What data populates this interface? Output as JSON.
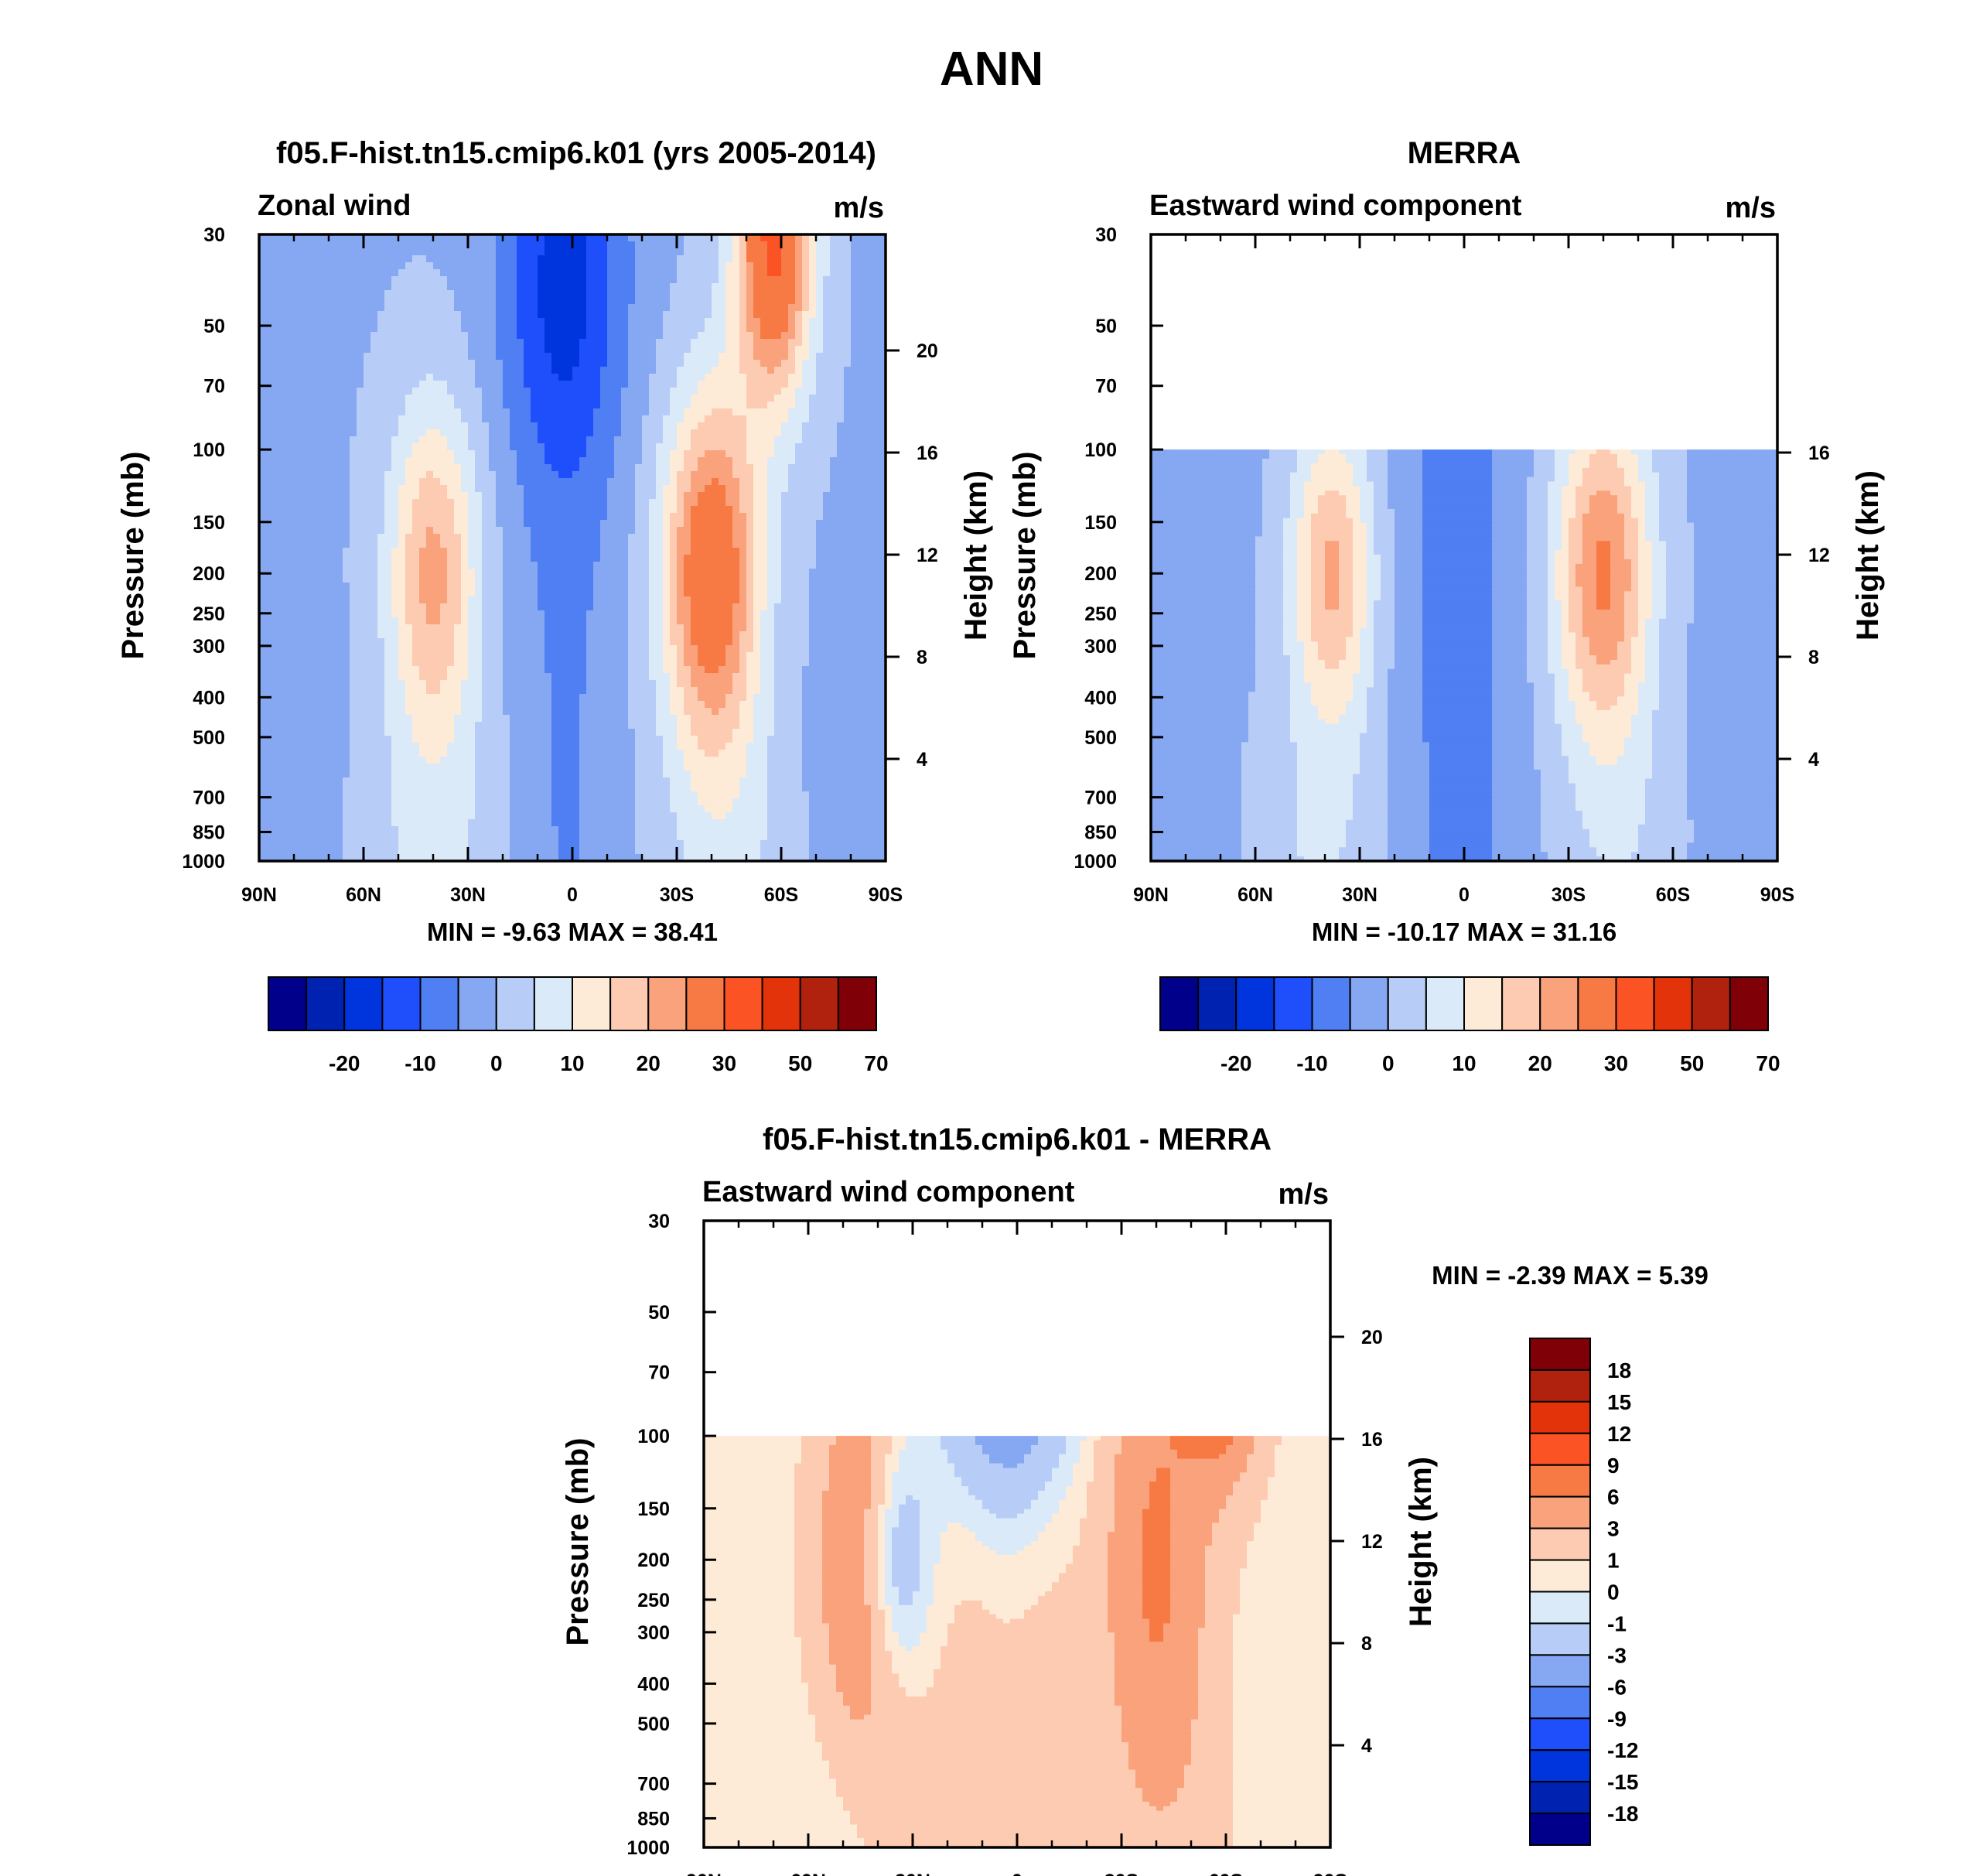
{
  "figure": {
    "title": "ANN"
  },
  "palettes": {
    "main": [
      "#00008a",
      "#0022b0",
      "#0035dd",
      "#1f4ffb",
      "#4f7ff2",
      "#86a7f2",
      "#b7cdf7",
      "#daeaf9",
      "#fdebd7",
      "#fdcbb1",
      "#f9a27b",
      "#f77a45",
      "#fb5323",
      "#e2330b",
      "#b0220d",
      "#7f0006"
    ],
    "diff": [
      "#00008a",
      "#0022b0",
      "#0035dd",
      "#1f4ffb",
      "#4f7ff2",
      "#86a7f2",
      "#b7cdf7",
      "#daeaf9",
      "#fdebd7",
      "#fdcbb1",
      "#f9a27b",
      "#f77a45",
      "#fb5323",
      "#e2330b",
      "#b0220d",
      "#7f0006"
    ]
  },
  "chart_data": [
    {
      "type": "heatmap",
      "id": "model",
      "title": "f05.F-hist.tn15.cmip6.k01 (yrs 2005-2014)",
      "left_string": "Zonal wind",
      "units": "m/s",
      "ylabel": "Pressure (mb)",
      "ylabel_right": "Height (km)",
      "x_ticks": [
        "90N",
        "60N",
        "30N",
        "0",
        "30S",
        "60S",
        "90S"
      ],
      "y_ticks": [
        "30",
        "50",
        "70",
        "100",
        "150",
        "200",
        "250",
        "300",
        "400",
        "500",
        "700",
        "850",
        "1000"
      ],
      "height_ticks": [
        "20",
        "16",
        "12",
        "8",
        "4"
      ],
      "xlim": [
        -90,
        90
      ],
      "ylim": [
        1000,
        30
      ],
      "data_top_mb": 30,
      "min_label": "MIN =  -9.63  MAX =  38.41",
      "levels": [
        -25,
        -20,
        -15,
        -10,
        -5,
        0,
        5,
        10,
        15,
        20,
        25,
        30,
        40,
        50,
        60,
        70,
        80
      ],
      "colorbar_labels": [
        "-20",
        "-10",
        "0",
        "10",
        "20",
        "30",
        "50",
        "70"
      ],
      "colorbar_values": [
        -20,
        -10,
        0,
        10,
        20,
        30,
        50,
        70
      ],
      "jets": {
        "nh_peak": 22,
        "nh_lat": 40,
        "sh_peak": 33,
        "sh_lat": 40,
        "polar_night_jet": 38
      }
    },
    {
      "type": "heatmap",
      "id": "obs",
      "title": "MERRA",
      "left_string": "Eastward wind component",
      "units": "m/s",
      "ylabel": "Pressure (mb)",
      "ylabel_right": "Height (km)",
      "x_ticks": [
        "90N",
        "60N",
        "30N",
        "0",
        "30S",
        "60S",
        "90S"
      ],
      "y_ticks": [
        "30",
        "50",
        "70",
        "100",
        "150",
        "200",
        "250",
        "300",
        "400",
        "500",
        "700",
        "850",
        "1000"
      ],
      "height_ticks": [
        "16",
        "12",
        "8",
        "4"
      ],
      "xlim": [
        -90,
        90
      ],
      "ylim": [
        1000,
        30
      ],
      "data_top_mb": 100,
      "min_label": "MIN = -10.17  MAX =  31.16",
      "levels": [
        -25,
        -20,
        -15,
        -10,
        -5,
        0,
        5,
        10,
        15,
        20,
        25,
        30,
        40,
        50,
        60,
        70,
        80
      ],
      "colorbar_labels": [
        "-20",
        "-10",
        "0",
        "10",
        "20",
        "30",
        "50",
        "70"
      ],
      "colorbar_values": [
        -20,
        -10,
        0,
        10,
        20,
        30,
        50,
        70
      ],
      "jets": {
        "nh_peak": 22,
        "nh_lat": 38,
        "sh_peak": 27,
        "sh_lat": 40
      }
    },
    {
      "type": "heatmap",
      "id": "diff",
      "title": "f05.F-hist.tn15.cmip6.k01 - MERRA",
      "left_string": "Eastward wind component",
      "units": "m/s",
      "ylabel": "Pressure (mb)",
      "ylabel_right": "Height (km)",
      "x_ticks": [
        "90N",
        "60N",
        "30N",
        "0",
        "30S",
        "60S",
        "90S"
      ],
      "y_ticks": [
        "30",
        "50",
        "70",
        "100",
        "150",
        "200",
        "250",
        "300",
        "400",
        "500",
        "700",
        "850",
        "1000"
      ],
      "height_ticks": [
        "20",
        "16",
        "12",
        "8",
        "4"
      ],
      "xlim": [
        -90,
        90
      ],
      "ylim": [
        1000,
        30
      ],
      "data_top_mb": 100,
      "min_label": "MIN =  -2.39  MAX =   5.39",
      "levels": [
        -21,
        -18,
        -15,
        -12,
        -9,
        -6,
        -3,
        -1,
        0,
        1,
        3,
        6,
        9,
        12,
        15,
        18,
        21
      ],
      "colorbar_labels": [
        "18",
        "15",
        "12",
        "9",
        "6",
        "3",
        "1",
        "0",
        "-1",
        "-3",
        "-6",
        "-9",
        "-12",
        "-15",
        "-18"
      ],
      "colorbar_values": [
        18,
        15,
        12,
        9,
        6,
        3,
        1,
        0,
        -1,
        -3,
        -6,
        -9,
        -12,
        -15,
        -18
      ]
    }
  ]
}
